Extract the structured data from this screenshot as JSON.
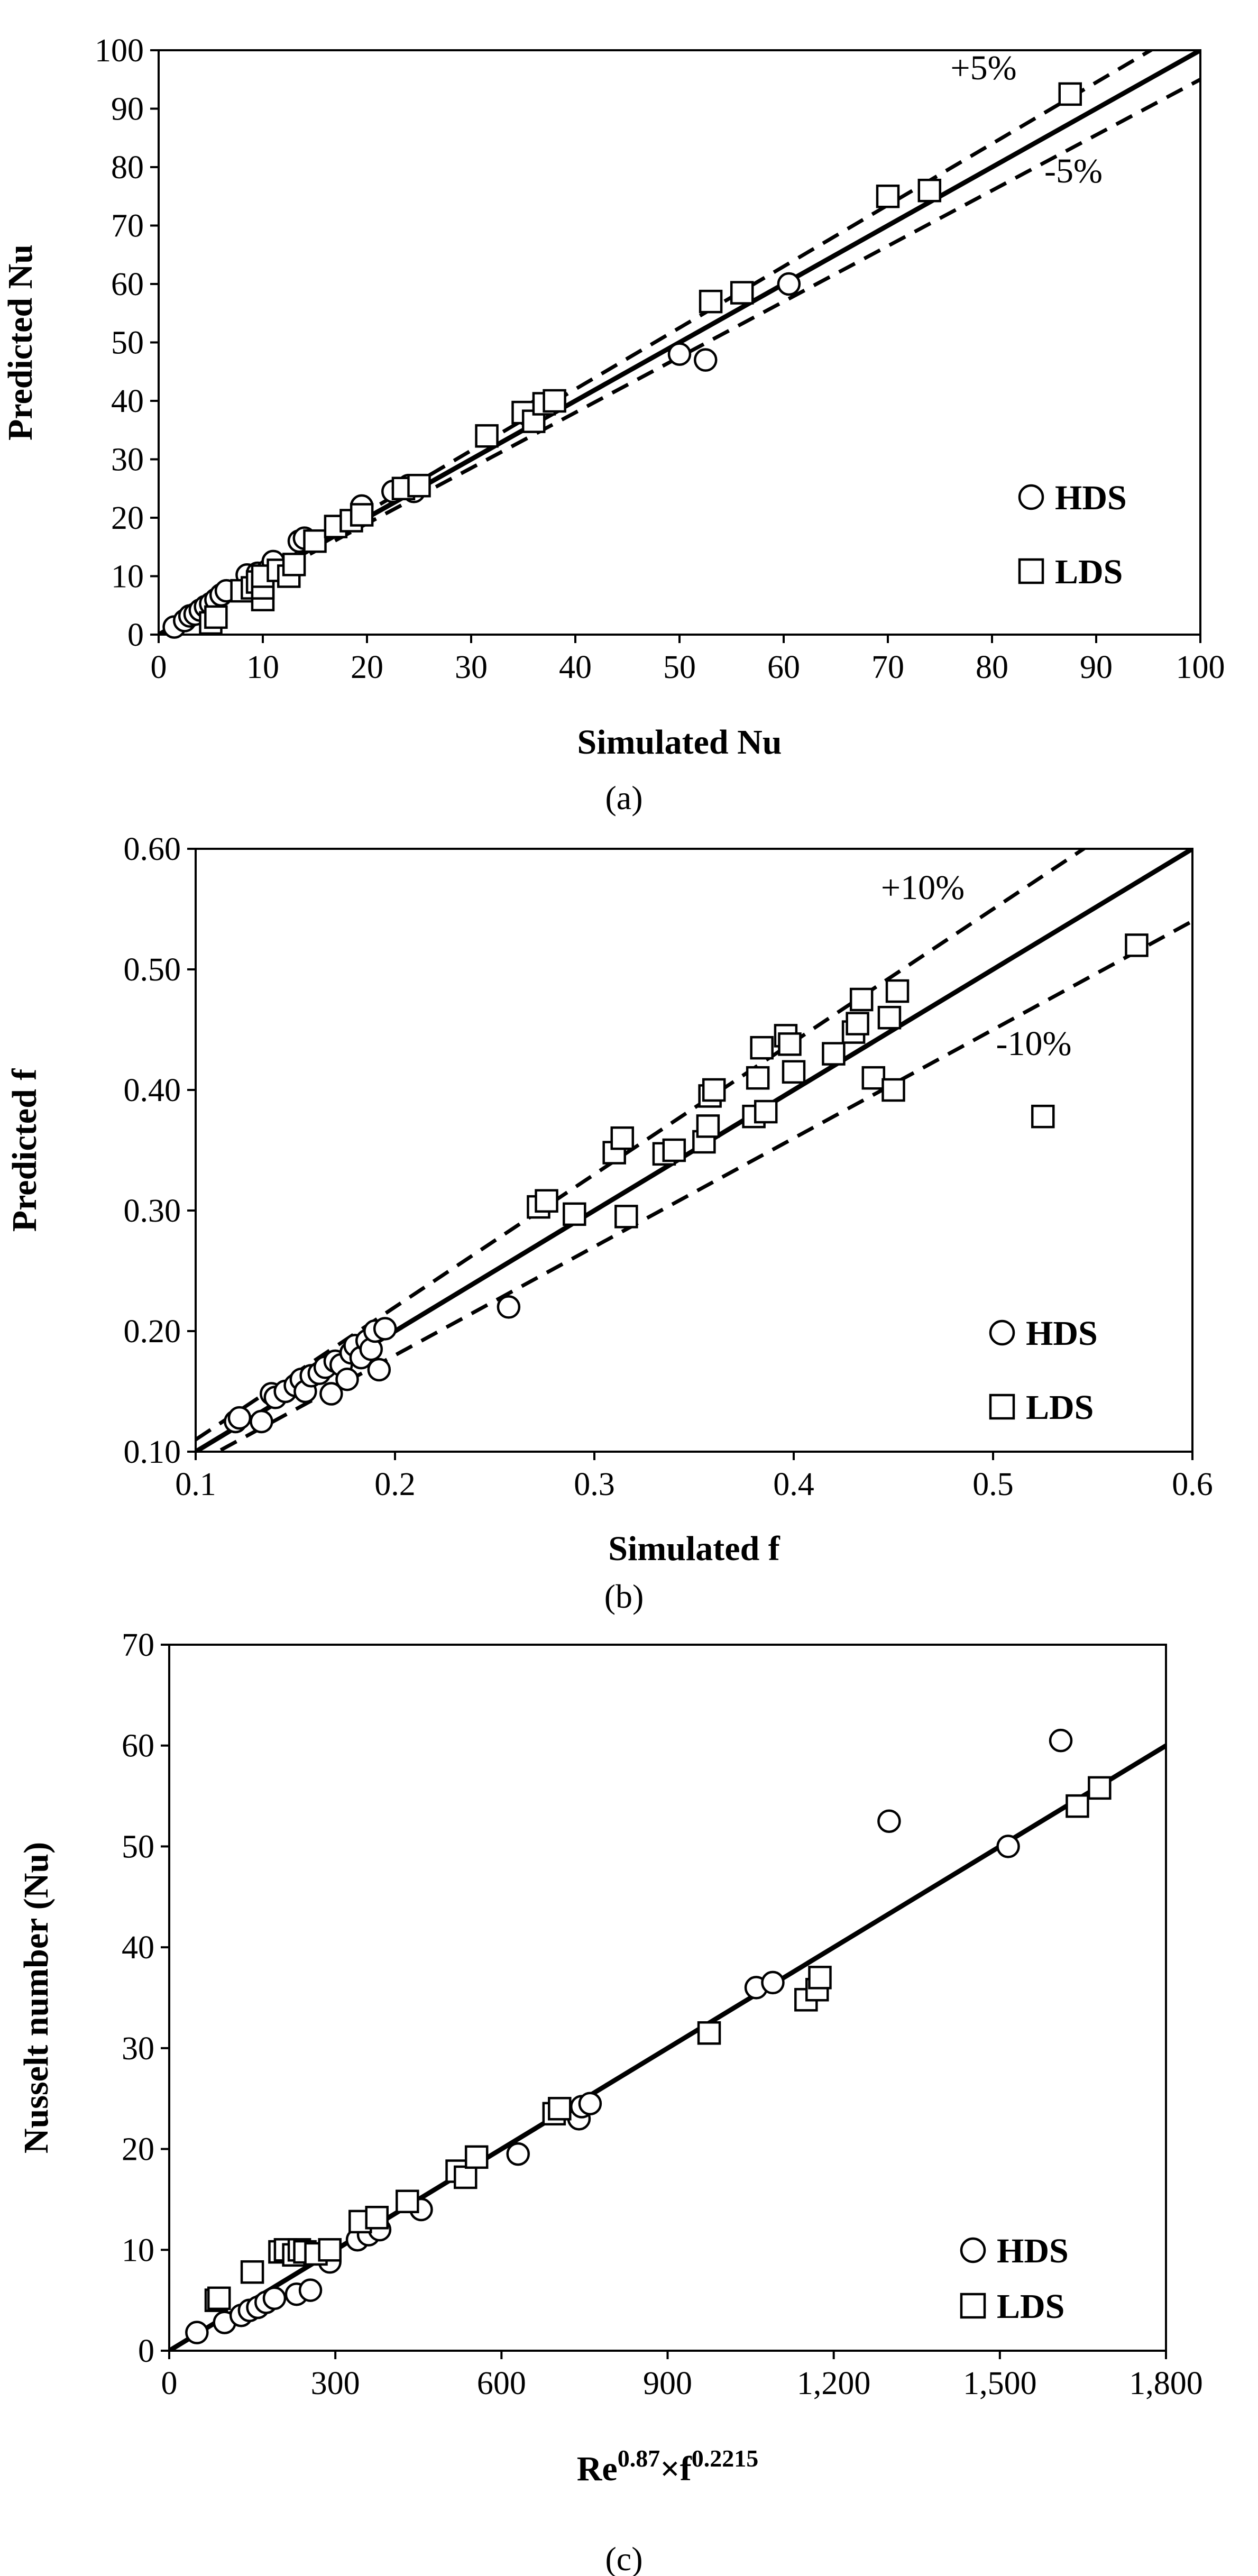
{
  "charts": [
    {
      "caption": "(a)",
      "chart_data": {
        "type": "scatter",
        "title": "",
        "xlabel": "Simulated Nu",
        "ylabel": "Predicted Nu",
        "xlim": [
          0,
          100
        ],
        "ylim": [
          0,
          100
        ],
        "xticks": [
          0,
          10,
          20,
          30,
          40,
          50,
          60,
          70,
          80,
          90,
          100
        ],
        "yticks": [
          0,
          10,
          20,
          30,
          40,
          50,
          60,
          70,
          80,
          90,
          100
        ],
        "tick_labels_x": [
          "0",
          "10",
          "20",
          "30",
          "40",
          "50",
          "60",
          "70",
          "80",
          "90",
          "100"
        ],
        "tick_labels_y": [
          "0",
          "10",
          "20",
          "30",
          "40",
          "50",
          "60",
          "70",
          "80",
          "90",
          "100"
        ],
        "legend_position": "bottom-right",
        "lines": [
          {
            "name": "y = x",
            "slope": 1.0,
            "style": "solid"
          },
          {
            "name": "+5%",
            "slope": 1.05,
            "style": "dashed",
            "label": "+5%"
          },
          {
            "name": "-5%",
            "slope": 0.95,
            "style": "dashed",
            "label": "-5%"
          }
        ],
        "series": [
          {
            "name": "HDS",
            "marker": "circle",
            "points": [
              [
                1.5,
                1.3
              ],
              [
                2.5,
                2.4
              ],
              [
                3,
                3.2
              ],
              [
                3.5,
                3.5
              ],
              [
                4,
                4.2
              ],
              [
                4.5,
                4.8
              ],
              [
                5,
                5.3
              ],
              [
                5.5,
                6
              ],
              [
                6,
                6.8
              ],
              [
                6.5,
                7.5
              ],
              [
                8.5,
                10.2
              ],
              [
                9.5,
                10.5
              ],
              [
                10.5,
                11
              ],
              [
                11,
                12.5
              ],
              [
                13.5,
                16
              ],
              [
                14,
                16.5
              ],
              [
                19.5,
                22
              ],
              [
                22.5,
                24.5
              ],
              [
                23.5,
                25
              ],
              [
                24,
                25.5
              ],
              [
                24.5,
                24.5
              ],
              [
                35.5,
                37.5
              ],
              [
                36.5,
                38.5
              ],
              [
                50,
                48
              ],
              [
                52.5,
                47
              ],
              [
                60.5,
                60
              ]
            ]
          },
          {
            "name": "LDS",
            "marker": "square",
            "points": [
              [
                5,
                2
              ],
              [
                5.5,
                3
              ],
              [
                8,
                7.5
              ],
              [
                9,
                8
              ],
              [
                9.5,
                9
              ],
              [
                10,
                6
              ],
              [
                10,
                8
              ],
              [
                10,
                10
              ],
              [
                11.5,
                11
              ],
              [
                12.5,
                10
              ],
              [
                13,
                12
              ],
              [
                15,
                16
              ],
              [
                17,
                18.5
              ],
              [
                18.5,
                19.5
              ],
              [
                19.5,
                20.5
              ],
              [
                23.5,
                25
              ],
              [
                25,
                25.5
              ],
              [
                31.5,
                34
              ],
              [
                35,
                38
              ],
              [
                36,
                36.5
              ],
              [
                37,
                39.5
              ],
              [
                38,
                40
              ],
              [
                53,
                57
              ],
              [
                56,
                58.5
              ],
              [
                70,
                75
              ],
              [
                74,
                76
              ],
              [
                87.5,
                92.5
              ]
            ]
          }
        ]
      }
    },
    {
      "caption": "(b)",
      "chart_data": {
        "type": "scatter",
        "title": "",
        "xlabel": "Simulated f",
        "ylabel": "Predicted f",
        "xlim": [
          0.1,
          0.6
        ],
        "ylim": [
          0.1,
          0.6
        ],
        "xticks": [
          0.1,
          0.2,
          0.3,
          0.4,
          0.5,
          0.6
        ],
        "yticks": [
          0.1,
          0.2,
          0.3,
          0.4,
          0.5,
          0.6
        ],
        "tick_labels_x": [
          "0.1",
          "0.2",
          "0.3",
          "0.4",
          "0.5",
          "0.6"
        ],
        "tick_labels_y": [
          "0.10",
          "0.20",
          "0.30",
          "0.40",
          "0.50",
          "0.60"
        ],
        "legend_position": "bottom-right",
        "lines": [
          {
            "name": "y = x",
            "slope": 1.0,
            "style": "solid"
          },
          {
            "name": "+10%",
            "slope": 1.1,
            "style": "dashed",
            "label": "+10%"
          },
          {
            "name": "-10%",
            "slope": 0.9,
            "style": "dashed",
            "label": "-10%"
          }
        ],
        "series": [
          {
            "name": "HDS",
            "marker": "circle",
            "points": [
              [
                0.12,
                0.125
              ],
              [
                0.122,
                0.128
              ],
              [
                0.133,
                0.125
              ],
              [
                0.138,
                0.148
              ],
              [
                0.14,
                0.145
              ],
              [
                0.145,
                0.15
              ],
              [
                0.15,
                0.155
              ],
              [
                0.153,
                0.16
              ],
              [
                0.155,
                0.15
              ],
              [
                0.158,
                0.163
              ],
              [
                0.162,
                0.165
              ],
              [
                0.165,
                0.17
              ],
              [
                0.168,
                0.148
              ],
              [
                0.17,
                0.175
              ],
              [
                0.173,
                0.172
              ],
              [
                0.176,
                0.16
              ],
              [
                0.178,
                0.182
              ],
              [
                0.18,
                0.188
              ],
              [
                0.183,
                0.178
              ],
              [
                0.186,
                0.192
              ],
              [
                0.188,
                0.185
              ],
              [
                0.19,
                0.2
              ],
              [
                0.192,
                0.168
              ],
              [
                0.195,
                0.202
              ],
              [
                0.257,
                0.22
              ]
            ]
          },
          {
            "name": "LDS",
            "marker": "square",
            "points": [
              [
                0.272,
                0.303
              ],
              [
                0.276,
                0.308
              ],
              [
                0.29,
                0.297
              ],
              [
                0.31,
                0.348
              ],
              [
                0.314,
                0.36
              ],
              [
                0.316,
                0.295
              ],
              [
                0.335,
                0.347
              ],
              [
                0.34,
                0.35
              ],
              [
                0.355,
                0.357
              ],
              [
                0.357,
                0.37
              ],
              [
                0.358,
                0.395
              ],
              [
                0.36,
                0.4
              ],
              [
                0.38,
                0.378
              ],
              [
                0.382,
                0.41
              ],
              [
                0.384,
                0.435
              ],
              [
                0.386,
                0.382
              ],
              [
                0.396,
                0.445
              ],
              [
                0.398,
                0.438
              ],
              [
                0.4,
                0.415
              ],
              [
                0.42,
                0.43
              ],
              [
                0.43,
                0.448
              ],
              [
                0.432,
                0.455
              ],
              [
                0.434,
                0.475
              ],
              [
                0.44,
                0.41
              ],
              [
                0.448,
                0.46
              ],
              [
                0.45,
                0.4
              ],
              [
                0.452,
                0.482
              ],
              [
                0.525,
                0.378
              ],
              [
                0.572,
                0.52
              ]
            ]
          }
        ]
      }
    },
    {
      "caption": "(c)",
      "chart_data": {
        "type": "scatter",
        "title": "",
        "xlabel": "Re",
        "xlabel_sup1": "0.87",
        "xlabel_mid": "×f",
        "xlabel_sup2": "0.2215",
        "ylabel": "Nusselt number (Nu)",
        "xlim": [
          0,
          1800
        ],
        "ylim": [
          0,
          70
        ],
        "xticks": [
          0,
          300,
          600,
          900,
          1200,
          1500,
          1800
        ],
        "yticks": [
          0,
          10,
          20,
          30,
          40,
          50,
          60,
          70
        ],
        "tick_labels_x": [
          "0",
          "300",
          "600",
          "900",
          "1,200",
          "1,500",
          "1,800"
        ],
        "tick_labels_y": [
          "0",
          "10",
          "20",
          "30",
          "40",
          "50",
          "60",
          "70"
        ],
        "legend_position": "bottom-right",
        "lines": [
          {
            "name": "fit",
            "slope": 0.03333,
            "style": "solid"
          }
        ],
        "series": [
          {
            "name": "HDS",
            "marker": "circle",
            "points": [
              [
                50,
                1.8
              ],
              [
                100,
                2.8
              ],
              [
                130,
                3.5
              ],
              [
                145,
                4
              ],
              [
                160,
                4.3
              ],
              [
                175,
                4.8
              ],
              [
                190,
                5.2
              ],
              [
                230,
                5.6
              ],
              [
                255,
                6
              ],
              [
                290,
                8.8
              ],
              [
                340,
                11
              ],
              [
                360,
                11.5
              ],
              [
                380,
                12
              ],
              [
                455,
                14
              ],
              [
                630,
                19.5
              ],
              [
                740,
                23
              ],
              [
                745,
                24.2
              ],
              [
                760,
                24.5
              ],
              [
                1060,
                36
              ],
              [
                1090,
                36.5
              ],
              [
                1300,
                52.5
              ],
              [
                1515,
                50
              ],
              [
                1610,
                60.5
              ]
            ]
          },
          {
            "name": "LDS",
            "marker": "square",
            "points": [
              [
                85,
                5
              ],
              [
                90,
                5.2
              ],
              [
                150,
                7.8
              ],
              [
                200,
                9.8
              ],
              [
                210,
                10
              ],
              [
                225,
                9.5
              ],
              [
                235,
                10
              ],
              [
                245,
                9.8
              ],
              [
                265,
                9.6
              ],
              [
                290,
                10
              ],
              [
                345,
                12.8
              ],
              [
                375,
                13.2
              ],
              [
                430,
                14.8
              ],
              [
                520,
                17.8
              ],
              [
                535,
                17.2
              ],
              [
                555,
                19.2
              ],
              [
                695,
                23.5
              ],
              [
                705,
                24
              ],
              [
                975,
                31.5
              ],
              [
                1150,
                34.8
              ],
              [
                1170,
                35.8
              ],
              [
                1175,
                37
              ],
              [
                1640,
                54
              ],
              [
                1680,
                55.8
              ]
            ]
          }
        ]
      }
    }
  ]
}
